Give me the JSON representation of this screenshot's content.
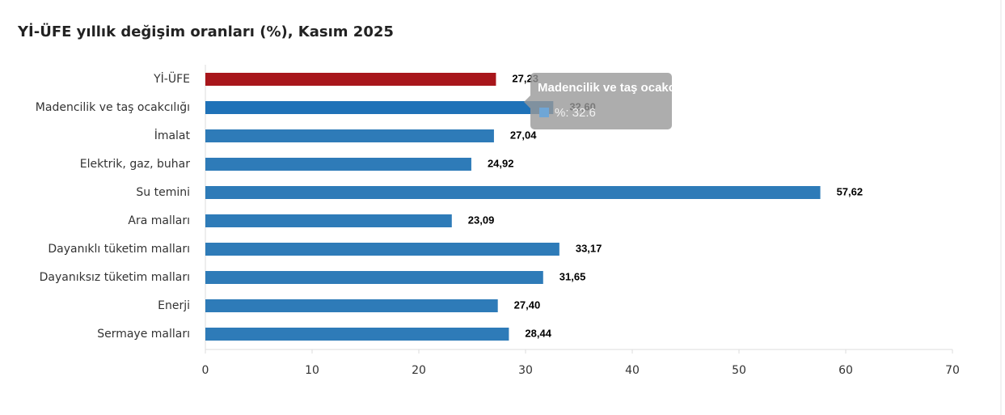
{
  "chart_data": {
    "type": "bar",
    "orientation": "horizontal",
    "title": "Yİ-ÜFE yıllık değişim oranları (%), Kasım 2025",
    "categories": [
      "Yİ-ÜFE",
      "Madencilik ve taş ocakcılığı",
      "İmalat",
      "Elektrik, gaz, buhar",
      "Su temini",
      "Ara malları",
      "Dayanıklı tüketim malları",
      "Dayanıksız tüketim malları",
      "Enerji",
      "Sermaye malları"
    ],
    "values": [
      27.23,
      32.6,
      27.04,
      24.92,
      57.62,
      23.09,
      33.17,
      31.65,
      27.4,
      28.44
    ],
    "value_labels": [
      "27,23",
      "32,60",
      "27,04",
      "24,92",
      "57,62",
      "23,09",
      "33,17",
      "31,65",
      "27,40",
      "28,44"
    ],
    "colors": [
      "#a8161b",
      "#1f72b8",
      "#2e7bb8",
      "#2e7bb8",
      "#2e7bb8",
      "#2e7bb8",
      "#2e7bb8",
      "#2e7bb8",
      "#2e7bb8",
      "#2e7bb8"
    ],
    "xlim": [
      0,
      70
    ],
    "xticks": [
      0,
      10,
      20,
      30,
      40,
      50,
      60,
      70
    ],
    "tooltip": {
      "title": "Madencilik ve taş ocakcılığı",
      "label": "%: 32.6"
    }
  }
}
